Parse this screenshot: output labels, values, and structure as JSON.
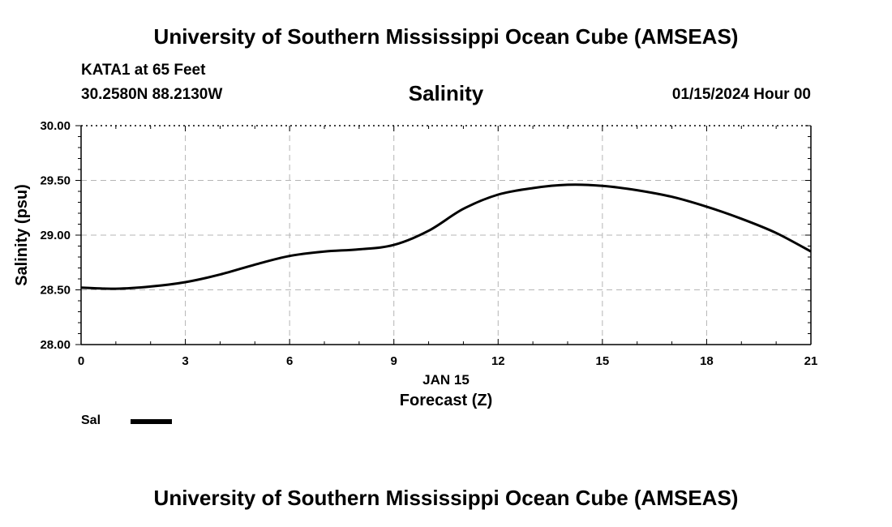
{
  "header": {
    "title": "University of Southern Mississippi Ocean Cube (AMSEAS)",
    "station": "KATA1 at 65 Feet",
    "coords": "30.2580N  88.2130W",
    "date": "01/15/2024 Hour 00"
  },
  "footer": {
    "title": "University of Southern Mississippi Ocean Cube (AMSEAS)"
  },
  "chart_data": {
    "type": "line",
    "title": "Salinity",
    "xlabel": "Forecast (Z)",
    "xlabel_date": "JAN 15",
    "ylabel": "Salinity (psu)",
    "xlim": [
      0,
      21
    ],
    "ylim": [
      28.0,
      30.0
    ],
    "x_ticks": [
      0,
      3,
      6,
      9,
      12,
      15,
      18,
      21
    ],
    "x_tick_labels": [
      "0",
      "3",
      "6",
      "9",
      "12",
      "15",
      "18",
      "21"
    ],
    "y_ticks": [
      28.0,
      28.5,
      29.0,
      29.5,
      30.0
    ],
    "y_tick_labels": [
      "28.00",
      "28.50",
      "29.00",
      "29.50",
      "30.00"
    ],
    "grid": true,
    "legend": "bottom-left",
    "series": [
      {
        "name": "Sal",
        "color": "#000000",
        "x": [
          0,
          1,
          2,
          3,
          4,
          5,
          6,
          7,
          8,
          9,
          10,
          11,
          12,
          13,
          14,
          15,
          16,
          17,
          18,
          19,
          20,
          21
        ],
        "values": [
          28.52,
          28.51,
          28.53,
          28.57,
          28.64,
          28.73,
          28.81,
          28.85,
          28.87,
          28.91,
          29.04,
          29.24,
          29.37,
          29.43,
          29.46,
          29.45,
          29.41,
          29.35,
          29.26,
          29.15,
          29.02,
          28.85
        ]
      }
    ]
  }
}
